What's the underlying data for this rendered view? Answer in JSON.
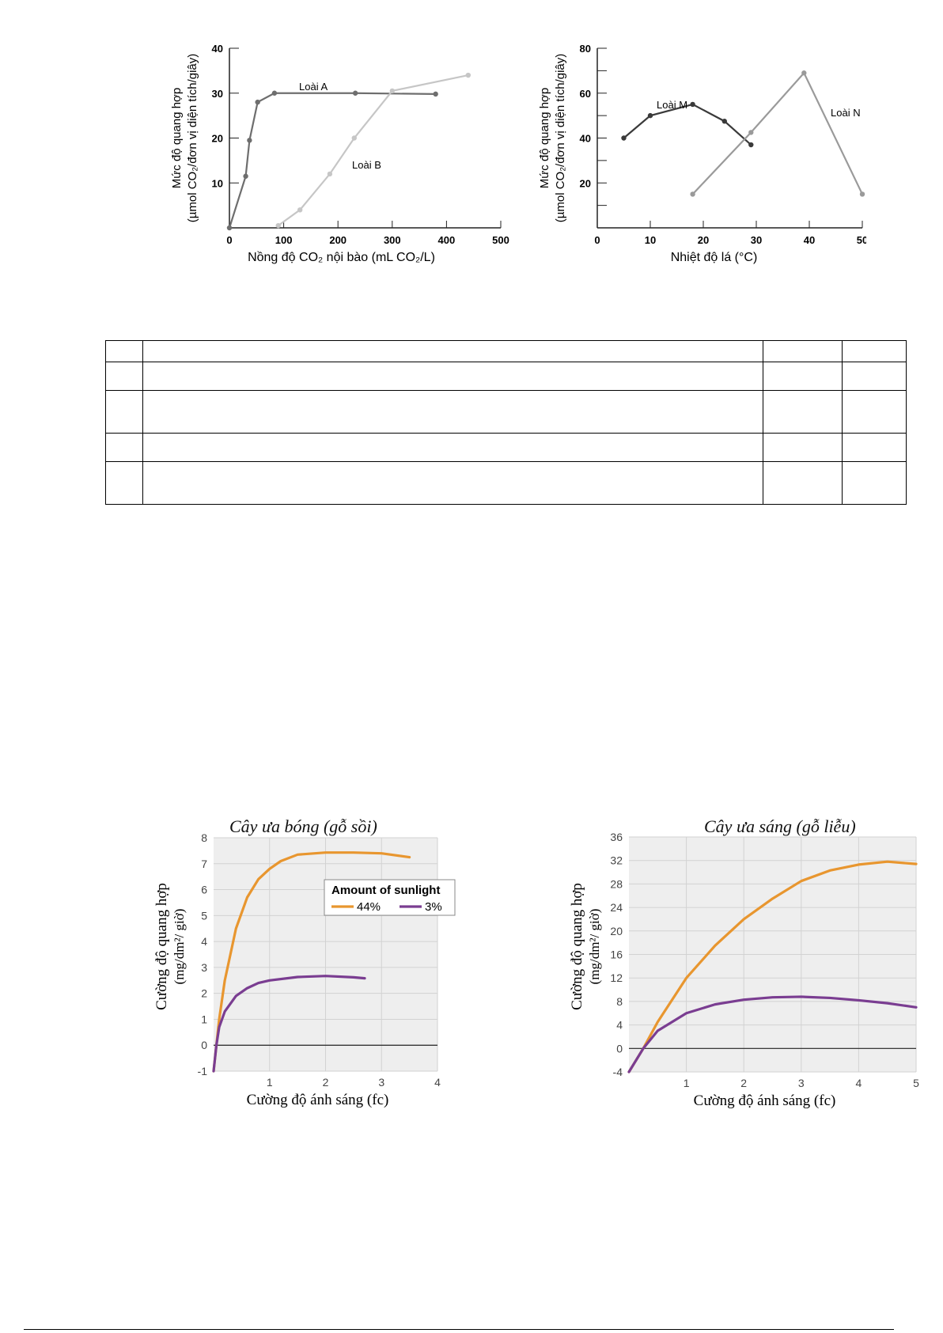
{
  "chart_data": [
    {
      "type": "line",
      "ylabel_line1": "Mức độ quang hợp",
      "ylabel_line2": "(µmol CO₂/đơn vị diện tích/giây)",
      "xlabel": "Nồng độ CO₂ nội bào (mL CO₂/L)",
      "xlim": [
        0,
        500
      ],
      "ylim": [
        0,
        40
      ],
      "xticks": [
        0,
        100,
        200,
        300,
        400,
        500
      ],
      "yticks": [
        10,
        20,
        30,
        40
      ],
      "series": [
        {
          "name": "Loài A",
          "color": "#6e6e6e",
          "points": [
            [
              0,
              0
            ],
            [
              30,
              11.5
            ],
            [
              37,
              19.5
            ],
            [
              52,
              28
            ],
            [
              83,
              30
            ],
            [
              232,
              30
            ],
            [
              380,
              29.8
            ]
          ]
        },
        {
          "name": "Loài B",
          "color": "#c6c6c6",
          "points": [
            [
              90,
              0.5
            ],
            [
              130,
              4
            ],
            [
              185,
              12
            ],
            [
              230,
              20
            ],
            [
              300,
              30.5
            ],
            [
              440,
              34
            ]
          ]
        }
      ]
    },
    {
      "type": "line",
      "ylabel_line1": "Mức độ quang hợp",
      "ylabel_line2": "(µmol CO₂/đơn vị diện tích/giây)",
      "xlabel": "Nhiệt độ lá (°C)",
      "xlim": [
        0,
        50
      ],
      "ylim": [
        0,
        80
      ],
      "xticks": [
        0,
        10,
        20,
        30,
        40,
        50
      ],
      "yticks": [
        20,
        40,
        60,
        80
      ],
      "series": [
        {
          "name": "Loài M",
          "color": "#3a3a3a",
          "points": [
            [
              5,
              40
            ],
            [
              10,
              50
            ],
            [
              18,
              55
            ],
            [
              24,
              47.5
            ],
            [
              29,
              37
            ]
          ]
        },
        {
          "name": "Loài N",
          "color": "#9a9a9a",
          "points": [
            [
              18,
              15
            ],
            [
              29,
              42.5
            ],
            [
              39,
              69
            ],
            [
              50,
              15
            ]
          ]
        }
      ]
    },
    {
      "type": "line",
      "title": "Cây ưa bóng (gỗ sồi)",
      "ylabel_line1": "Cường độ quang hợp",
      "ylabel_line2": "(mg/dm²/ giờ)",
      "xlabel": "Cường độ ánh sáng (fc)",
      "xlim": [
        0,
        4
      ],
      "ylim": [
        -1,
        8
      ],
      "xticks": [
        1,
        2,
        3,
        4
      ],
      "yticks": [
        -1,
        0,
        1,
        2,
        3,
        4,
        5,
        6,
        7,
        8
      ],
      "legend": {
        "title": "Amount of sunlight",
        "position": "right"
      },
      "series": [
        {
          "name": "44%",
          "color": "#e8962f",
          "points": [
            [
              0,
              -1
            ],
            [
              0.1,
              1
            ],
            [
              0.2,
              2.5
            ],
            [
              0.4,
              4.5
            ],
            [
              0.6,
              5.7
            ],
            [
              0.8,
              6.4
            ],
            [
              1,
              6.8
            ],
            [
              1.2,
              7.1
            ],
            [
              1.5,
              7.35
            ],
            [
              2,
              7.43
            ],
            [
              2.5,
              7.43
            ],
            [
              3,
              7.4
            ],
            [
              3.5,
              7.25
            ]
          ]
        },
        {
          "name": "3%",
          "color": "#7a3d91",
          "points": [
            [
              0,
              -1
            ],
            [
              0.05,
              0
            ],
            [
              0.1,
              0.7
            ],
            [
              0.2,
              1.3
            ],
            [
              0.4,
              1.9
            ],
            [
              0.6,
              2.2
            ],
            [
              0.8,
              2.4
            ],
            [
              1,
              2.5
            ],
            [
              1.5,
              2.63
            ],
            [
              2,
              2.67
            ],
            [
              2.5,
              2.62
            ],
            [
              2.7,
              2.58
            ]
          ]
        }
      ]
    },
    {
      "type": "line",
      "title": "Cây ưa sáng (gỗ liễu)",
      "ylabel_line1": "Cường độ quang hợp",
      "ylabel_line2": "(mg/dm²/ giờ)",
      "xlabel": "Cường độ ánh sáng (fc)",
      "xlim": [
        0,
        5
      ],
      "ylim": [
        -4,
        36
      ],
      "xticks": [
        1,
        2,
        3,
        4,
        5
      ],
      "yticks": [
        -4,
        0,
        4,
        8,
        12,
        16,
        20,
        24,
        28,
        32,
        36
      ],
      "series": [
        {
          "name": "44%",
          "color": "#e8962f",
          "points": [
            [
              0,
              -4
            ],
            [
              0.25,
              0
            ],
            [
              0.5,
              4.5
            ],
            [
              1,
              12
            ],
            [
              1.5,
              17.5
            ],
            [
              2,
              22
            ],
            [
              2.5,
              25.5
            ],
            [
              3,
              28.5
            ],
            [
              3.5,
              30.3
            ],
            [
              4,
              31.3
            ],
            [
              4.5,
              31.8
            ],
            [
              5,
              31.4
            ]
          ]
        },
        {
          "name": "3%",
          "color": "#7a3d91",
          "points": [
            [
              0,
              -4
            ],
            [
              0.25,
              0
            ],
            [
              0.5,
              3
            ],
            [
              1,
              6
            ],
            [
              1.5,
              7.5
            ],
            [
              2,
              8.3
            ],
            [
              2.5,
              8.7
            ],
            [
              3,
              8.8
            ],
            [
              3.5,
              8.6
            ],
            [
              4,
              8.2
            ],
            [
              4.5,
              7.7
            ],
            [
              5,
              7
            ]
          ]
        }
      ]
    }
  ],
  "table": {
    "rows": 5,
    "cols": 4
  }
}
